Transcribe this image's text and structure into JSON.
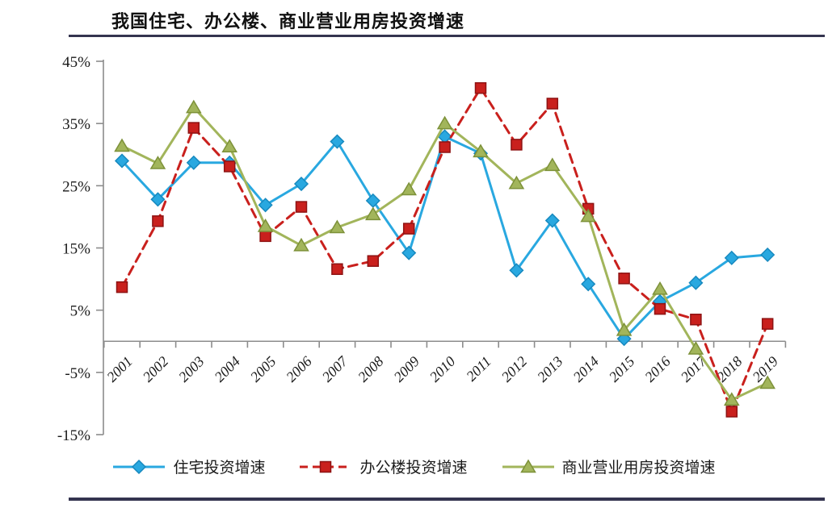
{
  "rule_color": "#34344F",
  "chart_data": {
    "type": "line",
    "title": "我国住宅、办公楼、商业营业用房投资增速",
    "categories": [
      "2001",
      "2002",
      "2003",
      "2004",
      "2005",
      "2006",
      "2007",
      "2008",
      "2009",
      "2010",
      "2011",
      "2012",
      "2013",
      "2014",
      "2015",
      "2016",
      "2017",
      "2018",
      "2019"
    ],
    "xlabel": "",
    "ylabel": "",
    "y_ticks": [
      45,
      35,
      25,
      15,
      5,
      -5,
      -15
    ],
    "y_tick_suffix": "%",
    "ylim": [
      -15,
      45
    ],
    "grid": false,
    "legend_position": "bottom",
    "axis_color": "#8C8C8C",
    "series": [
      {
        "name": "住宅投资增速",
        "color": "#29A8E0",
        "edge_color": "#1789BF",
        "marker": "diamond",
        "line_style": "solid",
        "values": [
          29.0,
          22.8,
          28.7,
          28.7,
          21.9,
          25.3,
          32.1,
          22.6,
          14.2,
          32.9,
          30.2,
          11.4,
          19.4,
          9.2,
          0.4,
          6.4,
          9.4,
          13.4,
          13.9
        ]
      },
      {
        "name": "办公楼投资增速",
        "color": "#C9201D",
        "edge_color": "#8E1313",
        "marker": "square",
        "line_style": "dashed",
        "values": [
          8.7,
          19.3,
          34.3,
          28.1,
          16.9,
          21.6,
          11.6,
          12.9,
          18.1,
          31.2,
          40.7,
          31.6,
          38.2,
          21.3,
          10.1,
          5.2,
          3.5,
          -11.3,
          2.8
        ]
      },
      {
        "name": "商业营业用房投资增速",
        "color": "#A2B55B",
        "edge_color": "#7D9139",
        "marker": "triangle",
        "line_style": "solid",
        "values": [
          31.4,
          28.6,
          37.6,
          31.3,
          18.5,
          15.4,
          18.3,
          20.4,
          24.4,
          35.0,
          30.5,
          25.4,
          28.3,
          20.1,
          1.8,
          8.4,
          -1.2,
          -9.4,
          -6.7
        ]
      }
    ]
  }
}
